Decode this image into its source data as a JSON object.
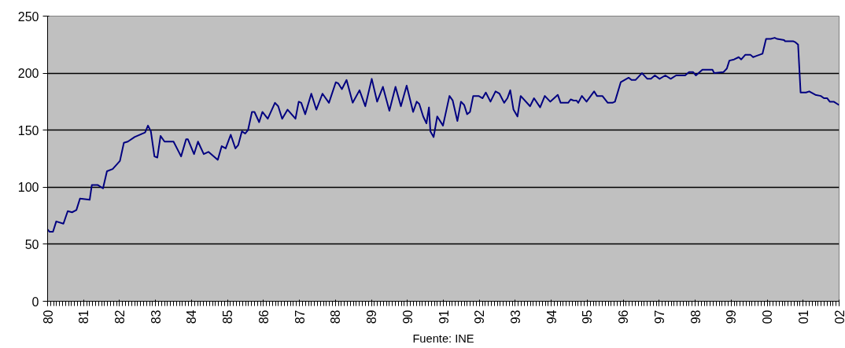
{
  "chart_data": {
    "type": "line",
    "annotations": [
      "Fuente: INE"
    ],
    "xlim": [
      1980,
      2002
    ],
    "ylim": [
      0,
      250
    ],
    "yticks": [
      0,
      50,
      100,
      150,
      200,
      250
    ],
    "xticks": [
      {
        "value": 1980,
        "label": "80"
      },
      {
        "value": 1981,
        "label": "81"
      },
      {
        "value": 1982,
        "label": "82"
      },
      {
        "value": 1983,
        "label": "83"
      },
      {
        "value": 1984,
        "label": "84"
      },
      {
        "value": 1985,
        "label": "85"
      },
      {
        "value": 1986,
        "label": "86"
      },
      {
        "value": 1987,
        "label": "87"
      },
      {
        "value": 1988,
        "label": "88"
      },
      {
        "value": 1989,
        "label": "89"
      },
      {
        "value": 1990,
        "label": "90"
      },
      {
        "value": 1991,
        "label": "91"
      },
      {
        "value": 1992,
        "label": "92"
      },
      {
        "value": 1993,
        "label": "93"
      },
      {
        "value": 1994,
        "label": "94"
      },
      {
        "value": 1995,
        "label": "95"
      },
      {
        "value": 1996,
        "label": "96"
      },
      {
        "value": 1997,
        "label": "97"
      },
      {
        "value": 1998,
        "label": "98"
      },
      {
        "value": 1999,
        "label": "99"
      },
      {
        "value": 2000,
        "label": "00"
      },
      {
        "value": 2001,
        "label": "01"
      },
      {
        "value": 2002,
        "label": "02"
      }
    ],
    "grid": "y",
    "marker": "none",
    "line_style": "solid",
    "series": [
      {
        "color": "#000080",
        "x": [
          1980.0,
          1980.05,
          1980.15,
          1980.24,
          1980.44,
          1980.56,
          1980.68,
          1980.8,
          1980.9,
          1981.17,
          1981.23,
          1981.39,
          1981.54,
          1981.65,
          1981.81,
          1982.01,
          1982.12,
          1982.23,
          1982.42,
          1982.71,
          1982.79,
          1982.87,
          1982.97,
          1983.05,
          1983.14,
          1983.25,
          1983.5,
          1983.63,
          1983.71,
          1983.85,
          1983.9,
          1984.07,
          1984.18,
          1984.34,
          1984.47,
          1984.73,
          1984.84,
          1984.95,
          1985.09,
          1985.22,
          1985.3,
          1985.4,
          1985.49,
          1985.57,
          1985.68,
          1985.75,
          1985.88,
          1985.97,
          1986.12,
          1986.32,
          1986.41,
          1986.52,
          1986.67,
          1986.89,
          1986.98,
          1987.05,
          1987.16,
          1987.33,
          1987.47,
          1987.64,
          1987.82,
          1988.01,
          1988.08,
          1988.18,
          1988.31,
          1988.48,
          1988.67,
          1988.83,
          1989.01,
          1989.16,
          1989.32,
          1989.5,
          1989.67,
          1989.82,
          1989.98,
          1990.16,
          1990.26,
          1990.33,
          1990.44,
          1990.53,
          1990.6,
          1990.64,
          1990.73,
          1990.83,
          1990.99,
          1991.17,
          1991.26,
          1991.39,
          1991.49,
          1991.58,
          1991.66,
          1991.74,
          1991.83,
          1991.98,
          1992.09,
          1992.18,
          1992.31,
          1992.45,
          1992.56,
          1992.69,
          1992.78,
          1992.86,
          1992.95,
          1993.06,
          1993.15,
          1993.41,
          1993.52,
          1993.69,
          1993.82,
          1993.97,
          1994.18,
          1994.26,
          1994.47,
          1994.54,
          1994.62,
          1994.7,
          1994.75,
          1994.85,
          1994.98,
          1995.19,
          1995.27,
          1995.42,
          1995.57,
          1995.7,
          1995.77,
          1995.93,
          1996.15,
          1996.23,
          1996.34,
          1996.52,
          1996.67,
          1996.77,
          1996.88,
          1997.01,
          1997.17,
          1997.32,
          1997.47,
          1997.72,
          1997.83,
          1997.94,
          1998.02,
          1998.2,
          1998.48,
          1998.53,
          1998.79,
          1998.88,
          1998.95,
          1999.08,
          1999.21,
          1999.28,
          1999.39,
          1999.54,
          1999.61,
          1999.69,
          1999.87,
          1999.97,
          2000.1,
          2000.21,
          2000.28,
          2000.47,
          2000.5,
          2000.72,
          2000.79,
          2000.86,
          2000.93,
          2001.08,
          2001.17,
          2001.34,
          2001.49,
          2001.58,
          2001.67,
          2001.74,
          2001.85,
          2002.0
        ],
        "values": [
          63,
          61,
          61,
          70,
          68,
          79,
          78,
          80,
          90,
          89,
          102,
          102,
          99,
          114,
          116,
          123,
          139,
          140,
          144,
          148,
          154,
          149,
          127,
          126,
          145,
          140,
          140,
          132,
          127,
          142,
          142,
          129,
          140,
          129,
          131,
          124,
          136,
          134,
          146,
          134,
          137,
          149,
          147,
          150,
          166,
          166,
          157,
          166,
          160,
          174,
          171,
          160,
          168,
          160,
          175,
          174,
          164,
          182,
          168,
          182,
          174,
          192,
          191,
          186,
          194,
          174,
          185,
          171,
          195,
          175,
          188,
          167,
          188,
          171,
          189,
          166,
          175,
          173,
          162,
          156,
          170,
          149,
          144,
          162,
          154,
          180,
          176,
          158,
          175,
          172,
          164,
          166,
          180,
          180,
          178,
          183,
          175,
          184,
          182,
          174,
          178,
          185,
          168,
          162,
          180,
          171,
          178,
          170,
          180,
          175,
          181,
          174,
          174,
          177,
          176,
          176,
          174,
          180,
          175,
          184,
          180,
          180,
          174,
          174,
          175,
          192,
          196,
          194,
          194,
          200,
          195,
          195,
          198,
          195,
          198,
          195,
          198,
          198,
          201,
          201,
          198,
          203,
          203,
          200,
          201,
          204,
          211,
          212,
          214,
          212,
          216,
          216,
          214,
          215,
          217,
          230,
          230,
          231,
          230,
          229,
          228,
          228,
          227,
          225,
          183,
          183,
          184,
          181,
          180,
          178,
          178,
          175,
          175,
          172
        ]
      }
    ]
  }
}
